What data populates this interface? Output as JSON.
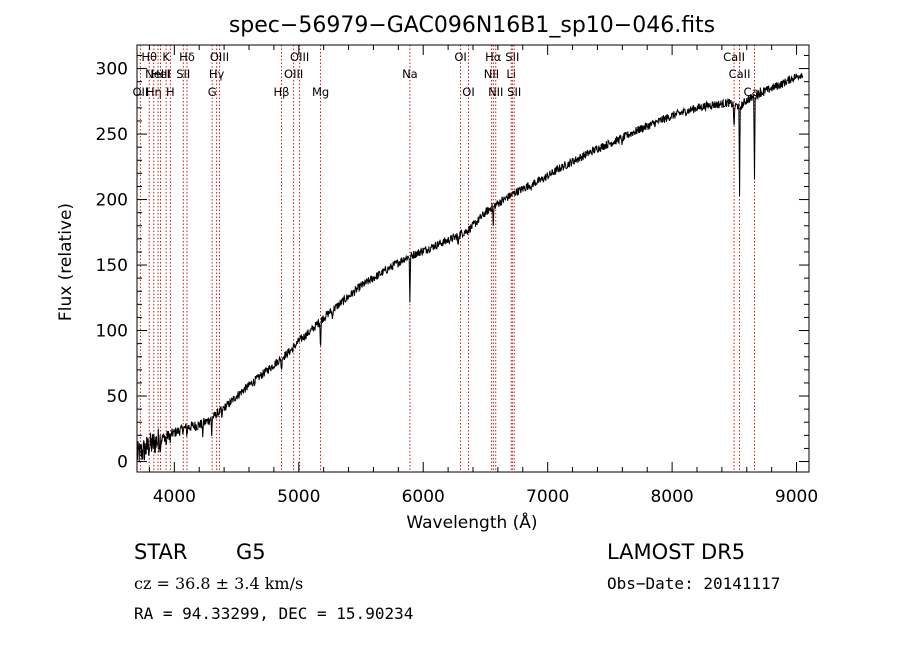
{
  "chart_data": {
    "type": "line",
    "title": "spec−56979−GAC096N16B1_sp10−046.fits",
    "xlabel": "Wavelength (Å)",
    "ylabel": "Flux (relative)",
    "xlim": [
      3700,
      9100
    ],
    "ylim": [
      -8,
      318
    ],
    "x_ticks": [
      4000,
      5000,
      6000,
      7000,
      8000,
      9000
    ],
    "y_ticks": [
      0,
      50,
      100,
      150,
      200,
      250,
      300
    ],
    "grid": false,
    "line_color": "#000000",
    "marker_color": "#cc0000",
    "series": [
      {
        "x": [
          3700,
          3750,
          3800,
          3850,
          3900,
          3950,
          4000,
          4050,
          4100,
          4150,
          4200,
          4250,
          4300,
          4350,
          4400,
          4450,
          4500,
          4550,
          4600,
          4650,
          4700,
          4750,
          4800,
          4850,
          4900,
          4950,
          5000,
          5050,
          5100,
          5150,
          5200,
          5250,
          5300,
          5350,
          5400,
          5450,
          5500,
          5550,
          5600,
          5650,
          5700,
          5750,
          5800,
          5850,
          5900,
          5950,
          6000,
          6050,
          6100,
          6150,
          6200,
          6250,
          6300,
          6350,
          6400,
          6450,
          6500,
          6550,
          6600,
          6650,
          6700,
          6750,
          6800,
          6850,
          6900,
          6950,
          7000,
          7100,
          7200,
          7300,
          7400,
          7500,
          7600,
          7700,
          7800,
          7900,
          8000,
          8100,
          8200,
          8300,
          8400,
          8450,
          8500,
          8550,
          8600,
          8650,
          8700,
          8750,
          8800,
          8850,
          8900,
          8950,
          9000,
          9050
        ],
        "y": [
          5,
          8,
          12,
          15,
          18,
          20,
          22,
          24,
          26,
          27,
          28,
          30,
          33,
          37,
          41,
          45,
          50,
          54,
          58,
          62,
          66,
          70,
          74,
          78,
          82,
          86,
          92,
          96,
          100,
          105,
          110,
          114,
          118,
          122,
          126,
          130,
          134,
          137,
          140,
          143,
          146,
          149,
          152,
          155,
          157,
          159,
          161,
          163,
          165,
          167,
          169,
          171,
          174,
          176,
          180,
          185,
          190,
          194,
          197,
          200,
          203,
          206,
          208,
          211,
          213,
          215,
          218,
          224,
          229,
          234,
          239,
          243,
          247,
          252,
          256,
          260,
          264,
          267,
          270,
          272,
          273,
          274,
          272,
          271,
          276,
          278,
          281,
          283,
          285,
          287,
          289,
          292,
          294,
          296
        ]
      }
    ],
    "absorption_dips": [
      {
        "x": 3934,
        "depth": 8
      },
      {
        "x": 3968,
        "depth": 7
      },
      {
        "x": 4101,
        "depth": 6
      },
      {
        "x": 4227,
        "depth": 10
      },
      {
        "x": 4300,
        "depth": 14
      },
      {
        "x": 4383,
        "depth": 8
      },
      {
        "x": 4861,
        "depth": 10
      },
      {
        "x": 5175,
        "depth": 22
      },
      {
        "x": 5270,
        "depth": 8
      },
      {
        "x": 5893,
        "depth": 36
      },
      {
        "x": 6280,
        "depth": 10
      },
      {
        "x": 6563,
        "depth": 18
      },
      {
        "x": 6870,
        "depth": 7
      },
      {
        "x": 7600,
        "depth": 6
      },
      {
        "x": 8498,
        "depth": 22
      },
      {
        "x": 8542,
        "depth": 70
      },
      {
        "x": 8662,
        "depth": 62
      }
    ],
    "line_markers": [
      {
        "x": 3727,
        "label": "OII",
        "row": 3
      },
      {
        "x": 3798,
        "label": "Hθ",
        "row": 1
      },
      {
        "x": 3835,
        "label": "Hη",
        "row": 3
      },
      {
        "x": 3869,
        "label": "NeIII",
        "row": 2
      },
      {
        "x": 3889,
        "label": "HeI",
        "row": 2
      },
      {
        "x": 3934,
        "label": "K",
        "row": 1
      },
      {
        "x": 3968,
        "label": "H",
        "row": 3
      },
      {
        "x": 4072,
        "label": "SII",
        "row": 2
      },
      {
        "x": 4102,
        "label": "Hδ",
        "row": 1
      },
      {
        "x": 4304,
        "label": "G",
        "row": 3
      },
      {
        "x": 4340,
        "label": "Hγ",
        "row": 2
      },
      {
        "x": 4363,
        "label": "OIII",
        "row": 1
      },
      {
        "x": 4861,
        "label": "Hβ",
        "row": 3
      },
      {
        "x": 4959,
        "label": "OIII",
        "row": 2
      },
      {
        "x": 5007,
        "label": "OIII",
        "row": 1
      },
      {
        "x": 5175,
        "label": "Mg",
        "row": 3
      },
      {
        "x": 5893,
        "label": "Na",
        "row": 2
      },
      {
        "x": 6300,
        "label": "OI",
        "row": 1
      },
      {
        "x": 6364,
        "label": "OI",
        "row": 3
      },
      {
        "x": 6548,
        "label": "NII",
        "row": 2
      },
      {
        "x": 6563,
        "label": "Hα",
        "row": 1
      },
      {
        "x": 6583,
        "label": "NII",
        "row": 3
      },
      {
        "x": 6707,
        "label": "Li",
        "row": 2
      },
      {
        "x": 6716,
        "label": "SII",
        "row": 1
      },
      {
        "x": 6731,
        "label": "SII",
        "row": 3
      },
      {
        "x": 8498,
        "label": "CaII",
        "row": 1
      },
      {
        "x": 8542,
        "label": "CaII",
        "row": 2
      },
      {
        "x": 8662,
        "label": "CaII",
        "row": 3
      }
    ]
  },
  "info": {
    "class_label": "STAR",
    "subclass": "G5",
    "survey": "LAMOST  DR5",
    "cz": "cz = 36.8 ± 3.4 km/s",
    "obs_date": "Obs−Date: 20141117",
    "coords": "RA =  94.33299, DEC =  15.90234"
  }
}
